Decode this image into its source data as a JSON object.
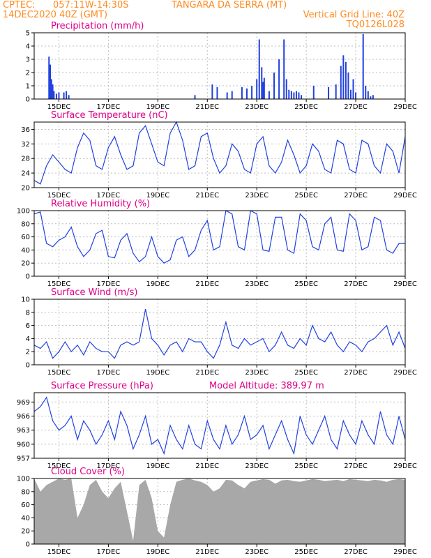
{
  "header": {
    "source": "CPTEC:",
    "coords": "057:11W-14:30S",
    "station": "TANGARA DA SERRA (MT)",
    "run": "14DEC2020 40Z (GMT)",
    "gridline": "Vertical Grid Line: 40Z",
    "model_id": "TQ0126L028"
  },
  "colors": {
    "line": "#2040e0",
    "bar": "#2040e0",
    "cloud": "#a8a8a8",
    "title": "#e0008a",
    "header": "#ff8a1e"
  },
  "x_ticks": [
    "15DEC",
    "17DEC",
    "19DEC",
    "21DEC",
    "23DEC",
    "25DEC",
    "27DEC",
    "29DEC"
  ],
  "chart_data": [
    {
      "type": "bar",
      "title": "Precipitation (mm/h)",
      "ylim": [
        0,
        5
      ],
      "yticks": [
        0,
        1,
        2,
        3,
        4,
        5
      ],
      "x": [
        0.6,
        0.65,
        0.7,
        0.75,
        0.8,
        0.9,
        1.0,
        1.2,
        1.3,
        1.4,
        6.5,
        7.2,
        7.4,
        7.8,
        8.0,
        8.4,
        8.6,
        8.8,
        9.0,
        9.1,
        9.2,
        9.25,
        9.3,
        9.5,
        9.7,
        9.9,
        10.1,
        10.2,
        10.3,
        10.4,
        10.5,
        10.6,
        10.7,
        10.8,
        11.3,
        11.9,
        12.2,
        12.4,
        12.5,
        12.6,
        12.7,
        12.8,
        12.9,
        13.0,
        13.3,
        13.4,
        13.5,
        13.6,
        13.7
      ],
      "values": [
        3.2,
        2.6,
        1.5,
        1.1,
        0.6,
        0.4,
        0.5,
        0.5,
        0.6,
        0.3,
        0.3,
        1.1,
        0.9,
        0.5,
        0.6,
        0.9,
        0.8,
        1.0,
        1.5,
        4.5,
        2.4,
        1.3,
        1.6,
        0.6,
        2.0,
        3.0,
        4.5,
        1.5,
        0.7,
        0.6,
        0.5,
        0.6,
        0.5,
        0.3,
        1.0,
        0.9,
        1.1,
        2.5,
        3.3,
        2.8,
        2.0,
        0.7,
        1.5,
        0.5,
        4.9,
        1.0,
        0.6,
        0.2,
        0.3
      ]
    },
    {
      "type": "line",
      "title": "Surface Temperature (nC)",
      "ylim": [
        20,
        38
      ],
      "yticks": [
        20,
        24,
        28,
        32,
        36
      ],
      "x": [
        0,
        0.25,
        0.5,
        0.75,
        1,
        1.25,
        1.5,
        1.75,
        2,
        2.25,
        2.5,
        2.75,
        3,
        3.25,
        3.5,
        3.75,
        4,
        4.25,
        4.5,
        4.75,
        5,
        5.25,
        5.5,
        5.75,
        6,
        6.25,
        6.5,
        6.75,
        7,
        7.25,
        7.5,
        7.75,
        8,
        8.25,
        8.5,
        8.75,
        9,
        9.25,
        9.5,
        9.75,
        10,
        10.25,
        10.5,
        10.75,
        11,
        11.25,
        11.5,
        11.75,
        12,
        12.25,
        12.5,
        12.75,
        13,
        13.25,
        13.5,
        13.75,
        14,
        14.25,
        14.5,
        14.75,
        15
      ],
      "y": [
        22,
        21,
        26,
        29,
        27,
        25,
        24,
        31,
        35,
        33,
        26,
        25,
        31,
        34,
        29,
        25,
        26,
        35,
        37,
        32,
        27,
        26,
        35,
        38,
        33,
        25,
        26,
        34,
        35,
        28,
        24,
        26,
        32,
        30,
        25,
        24,
        32,
        34,
        26,
        24,
        27,
        33,
        29,
        24,
        26,
        32,
        30,
        25,
        24,
        33,
        32,
        25,
        24,
        33,
        32,
        26,
        24,
        32,
        30,
        24,
        34
      ]
    },
    {
      "type": "line",
      "title": "Relative Humidity (%)",
      "ylim": [
        0,
        100
      ],
      "yticks": [
        0,
        20,
        40,
        60,
        80,
        100
      ],
      "x": [
        0,
        0.25,
        0.5,
        0.75,
        1,
        1.25,
        1.5,
        1.75,
        2,
        2.25,
        2.5,
        2.75,
        3,
        3.25,
        3.5,
        3.75,
        4,
        4.25,
        4.5,
        4.75,
        5,
        5.25,
        5.5,
        5.75,
        6,
        6.25,
        6.5,
        6.75,
        7,
        7.25,
        7.5,
        7.75,
        8,
        8.25,
        8.5,
        8.75,
        9,
        9.25,
        9.5,
        9.75,
        10,
        10.25,
        10.5,
        10.75,
        11,
        11.25,
        11.5,
        11.75,
        12,
        12.25,
        12.5,
        12.75,
        13,
        13.25,
        13.5,
        13.75,
        14,
        14.25,
        14.5,
        14.75,
        15
      ],
      "y": [
        95,
        98,
        50,
        45,
        55,
        60,
        75,
        45,
        30,
        40,
        65,
        70,
        30,
        28,
        55,
        65,
        35,
        22,
        30,
        60,
        30,
        20,
        25,
        55,
        60,
        30,
        40,
        70,
        85,
        40,
        45,
        100,
        95,
        45,
        40,
        100,
        95,
        40,
        38,
        90,
        90,
        40,
        35,
        95,
        85,
        45,
        40,
        80,
        90,
        40,
        38,
        95,
        85,
        40,
        45,
        90,
        85,
        40,
        35,
        50,
        50
      ]
    },
    {
      "type": "line",
      "title": "Surface Wind (m/s)",
      "ylim": [
        0,
        10
      ],
      "yticks": [
        0,
        2,
        4,
        6,
        8,
        10
      ],
      "x": [
        0,
        0.25,
        0.5,
        0.75,
        1,
        1.25,
        1.5,
        1.75,
        2,
        2.25,
        2.5,
        2.75,
        3,
        3.25,
        3.5,
        3.75,
        4,
        4.25,
        4.5,
        4.75,
        5,
        5.25,
        5.5,
        5.75,
        6,
        6.25,
        6.5,
        6.75,
        7,
        7.25,
        7.5,
        7.75,
        8,
        8.25,
        8.5,
        8.75,
        9,
        9.25,
        9.5,
        9.75,
        10,
        10.25,
        10.5,
        10.75,
        11,
        11.25,
        11.5,
        11.75,
        12,
        12.25,
        12.5,
        12.75,
        13,
        13.25,
        13.5,
        13.75,
        14,
        14.25,
        14.5,
        14.75,
        15
      ],
      "y": [
        3,
        2.5,
        3.5,
        1,
        2,
        3.5,
        2,
        3,
        1.5,
        3.5,
        2.5,
        2,
        2,
        1,
        3,
        3.5,
        3,
        3.5,
        8.5,
        4,
        3,
        1.5,
        3,
        3.5,
        2,
        4,
        3.5,
        3.5,
        2,
        1,
        3,
        6.5,
        3,
        2.5,
        4,
        3,
        3.5,
        4,
        2,
        3,
        5,
        3,
        2.5,
        4,
        3,
        6,
        4,
        3.5,
        5,
        3,
        2,
        3.5,
        3,
        2,
        3.5,
        4,
        5,
        6,
        3,
        5,
        2.5
      ]
    },
    {
      "type": "line",
      "title": "Surface Pressure (hPa)",
      "annotation": "Model Altitude: 389.97 m",
      "ylim": [
        957,
        971
      ],
      "yticks": [
        957,
        960,
        963,
        966,
        969
      ],
      "x": [
        0,
        0.25,
        0.5,
        0.75,
        1,
        1.25,
        1.5,
        1.75,
        2,
        2.25,
        2.5,
        2.75,
        3,
        3.25,
        3.5,
        3.75,
        4,
        4.25,
        4.5,
        4.75,
        5,
        5.25,
        5.5,
        5.75,
        6,
        6.25,
        6.5,
        6.75,
        7,
        7.25,
        7.5,
        7.75,
        8,
        8.25,
        8.5,
        8.75,
        9,
        9.25,
        9.5,
        9.75,
        10,
        10.25,
        10.5,
        10.75,
        11,
        11.25,
        11.5,
        11.75,
        12,
        12.25,
        12.5,
        12.75,
        13,
        13.25,
        13.5,
        13.75,
        14,
        14.25,
        14.5,
        14.75,
        15
      ],
      "y": [
        967,
        968,
        970,
        965,
        963,
        964,
        966,
        961,
        965,
        963,
        960,
        962,
        965,
        961,
        967,
        964,
        959,
        962,
        966,
        960,
        961,
        958,
        964,
        961,
        959,
        964,
        960,
        959,
        965,
        961,
        959,
        964,
        960,
        962,
        966,
        961,
        962,
        964,
        959,
        962,
        965,
        961,
        958,
        966,
        962,
        960,
        963,
        966,
        961,
        959,
        965,
        962,
        960,
        965,
        962,
        960,
        967,
        962,
        960,
        966,
        961
      ]
    },
    {
      "type": "area",
      "title": "Cloud Cover (%)",
      "ylim": [
        0,
        100
      ],
      "yticks": [
        0,
        20,
        40,
        60,
        80,
        100
      ],
      "x": [
        0,
        0.25,
        0.5,
        0.75,
        1,
        1.25,
        1.5,
        1.75,
        2,
        2.25,
        2.5,
        2.75,
        3,
        3.25,
        3.5,
        3.75,
        4,
        4.25,
        4.5,
        4.75,
        5,
        5.25,
        5.5,
        5.75,
        6,
        6.25,
        6.5,
        6.75,
        7,
        7.25,
        7.5,
        7.75,
        8,
        8.25,
        8.5,
        8.75,
        9,
        9.25,
        9.5,
        9.75,
        10,
        10.25,
        10.5,
        10.75,
        11,
        11.25,
        11.5,
        11.75,
        12,
        12.25,
        12.5,
        12.75,
        13,
        13.25,
        13.5,
        13.75,
        14,
        14.25,
        14.5,
        14.75,
        15
      ],
      "y": [
        100,
        80,
        90,
        95,
        100,
        98,
        100,
        40,
        60,
        90,
        98,
        80,
        70,
        85,
        95,
        50,
        5,
        90,
        98,
        70,
        20,
        10,
        60,
        95,
        98,
        100,
        97,
        95,
        90,
        80,
        85,
        98,
        97,
        90,
        85,
        95,
        97,
        99,
        98,
        92,
        97,
        98,
        96,
        95,
        97,
        99,
        98,
        96,
        97,
        98,
        96,
        99,
        98,
        97,
        96,
        98,
        97,
        95,
        98,
        99,
        98
      ]
    }
  ]
}
